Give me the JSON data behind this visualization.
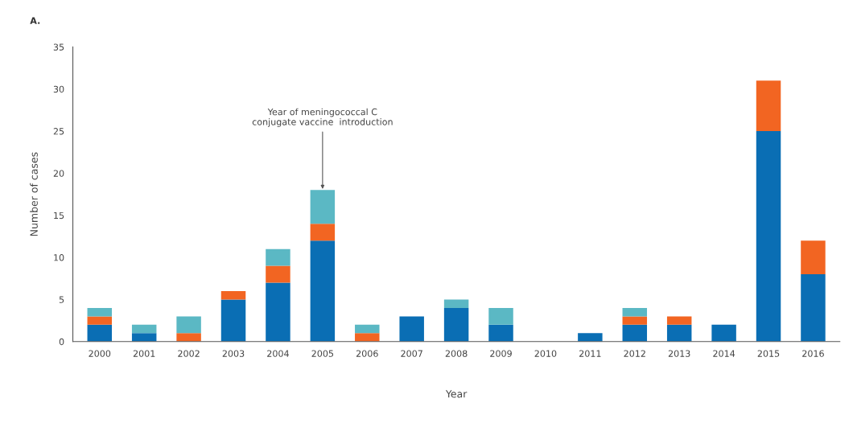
{
  "chart_data": {
    "type": "bar",
    "title": "A.",
    "xlabel": "Year",
    "ylabel": "Number of cases",
    "categories": [
      "2000",
      "2001",
      "2002",
      "2003",
      "2004",
      "2005",
      "2006",
      "2007",
      "2008",
      "2009",
      "2010",
      "2011",
      "2012",
      "2013",
      "2014",
      "2015",
      "2016"
    ],
    "stacked": true,
    "series": [
      {
        "color": "#0a6eb4",
        "values": [
          2,
          1,
          0,
          5,
          7,
          12,
          0,
          3,
          4,
          2,
          0,
          1,
          2,
          2,
          2,
          25,
          8
        ]
      },
      {
        "color": "#f26522",
        "values": [
          1,
          0,
          1,
          1,
          2,
          2,
          1,
          0,
          0,
          0,
          0,
          0,
          1,
          1,
          0,
          6,
          4
        ]
      },
      {
        "color": "#5bb8c4",
        "values": [
          1,
          1,
          2,
          0,
          2,
          4,
          1,
          0,
          1,
          2,
          0,
          0,
          1,
          0,
          0,
          0,
          0
        ]
      }
    ],
    "ylim": [
      0,
      35
    ],
    "yticks": [
      0,
      5,
      10,
      15,
      20,
      25,
      30,
      35
    ],
    "annotations": [
      {
        "text": "Year of meningococcal C\nconjugate vaccine  introduction",
        "x": "2005",
        "y": 18
      }
    ]
  }
}
